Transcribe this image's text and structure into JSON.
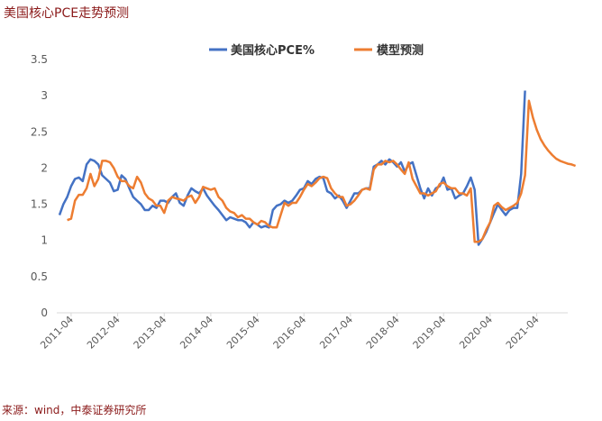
{
  "header": {
    "title": "美国核心PCE走势预测"
  },
  "footer": {
    "source": "来源：wind，中泰证券研究所"
  },
  "chart_data": {
    "type": "line",
    "title": "美国核心PCE走势预测",
    "xlabel": "",
    "ylabel": "",
    "ylim": [
      0,
      3.5
    ],
    "yticks": [
      "0",
      "0.5",
      "1",
      "1.5",
      "2",
      "2.5",
      "3",
      "3.5"
    ],
    "xticks": [
      "2011-04",
      "2012-04",
      "2013-04",
      "2014-04",
      "2015-04",
      "2016-04",
      "2017-04",
      "2018-04",
      "2019-04",
      "2020-04",
      "2021-04"
    ],
    "grid": false,
    "legend": "top-center",
    "x_start": "2011-01",
    "series": [
      {
        "name": "美国核心PCE%",
        "color": "#4472C4",
        "values": [
          1.35,
          1.5,
          1.6,
          1.75,
          1.85,
          1.87,
          1.82,
          2.05,
          2.12,
          2.1,
          2.05,
          1.9,
          1.85,
          1.8,
          1.68,
          1.7,
          1.9,
          1.85,
          1.72,
          1.6,
          1.55,
          1.5,
          1.42,
          1.42,
          1.48,
          1.45,
          1.55,
          1.55,
          1.52,
          1.6,
          1.65,
          1.52,
          1.48,
          1.62,
          1.72,
          1.68,
          1.65,
          1.72,
          1.62,
          1.55,
          1.48,
          1.42,
          1.35,
          1.28,
          1.32,
          1.3,
          1.28,
          1.28,
          1.25,
          1.18,
          1.25,
          1.22,
          1.18,
          1.2,
          1.18,
          1.42,
          1.48,
          1.5,
          1.55,
          1.52,
          1.55,
          1.62,
          1.7,
          1.72,
          1.82,
          1.78,
          1.85,
          1.88,
          1.86,
          1.68,
          1.65,
          1.58,
          1.62,
          1.55,
          1.45,
          1.55,
          1.65,
          1.65,
          1.7,
          1.72,
          1.72,
          2.02,
          2.05,
          2.1,
          2.05,
          2.12,
          2.08,
          2.02,
          2.08,
          1.95,
          2.05,
          2.08,
          1.9,
          1.72,
          1.58,
          1.72,
          1.62,
          1.72,
          1.75,
          1.87,
          1.7,
          1.72,
          1.58,
          1.62,
          1.65,
          1.75,
          1.87,
          1.7,
          0.94,
          1.02,
          1.12,
          1.25,
          1.38,
          1.5,
          1.42,
          1.35,
          1.42,
          1.45,
          1.45,
          1.92,
          3.07
        ],
        "x_start": "2011-01"
      },
      {
        "name": "模型预测",
        "color": "#ED7D31",
        "values": [
          1.28,
          1.3,
          1.55,
          1.63,
          1.63,
          1.72,
          1.92,
          1.75,
          1.85,
          2.1,
          2.1,
          2.08,
          2.0,
          1.88,
          1.82,
          1.82,
          1.75,
          1.72,
          1.88,
          1.8,
          1.65,
          1.58,
          1.55,
          1.48,
          1.48,
          1.38,
          1.55,
          1.6,
          1.58,
          1.57,
          1.55,
          1.6,
          1.62,
          1.52,
          1.6,
          1.74,
          1.72,
          1.7,
          1.72,
          1.6,
          1.55,
          1.45,
          1.4,
          1.38,
          1.32,
          1.35,
          1.3,
          1.3,
          1.25,
          1.22,
          1.27,
          1.25,
          1.2,
          1.18,
          1.18,
          1.35,
          1.52,
          1.48,
          1.52,
          1.52,
          1.6,
          1.7,
          1.78,
          1.75,
          1.8,
          1.86,
          1.88,
          1.86,
          1.72,
          1.65,
          1.6,
          1.6,
          1.48,
          1.5,
          1.55,
          1.62,
          1.7,
          1.72,
          1.7,
          1.98,
          2.05,
          2.05,
          2.1,
          2.08,
          2.1,
          2.05,
          1.98,
          1.92,
          2.08,
          1.85,
          1.75,
          1.65,
          1.65,
          1.62,
          1.65,
          1.68,
          1.78,
          1.8,
          1.75,
          1.72,
          1.72,
          1.65,
          1.65,
          1.62,
          1.72,
          0.98,
          0.98,
          1.02,
          1.15,
          1.25,
          1.48,
          1.52,
          1.46,
          1.42,
          1.45,
          1.48,
          1.52,
          1.65,
          1.9,
          2.93,
          2.7,
          2.53,
          2.4,
          2.31,
          2.24,
          2.18,
          2.13,
          2.1,
          2.08,
          2.06,
          2.05,
          2.03
        ],
        "x_start": "2011-03"
      }
    ]
  }
}
